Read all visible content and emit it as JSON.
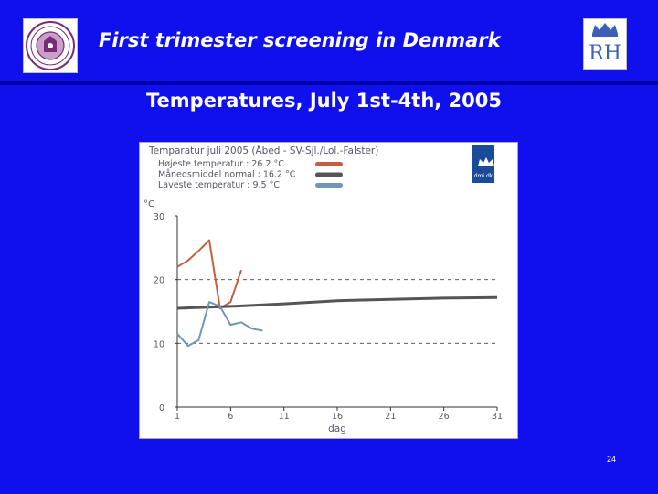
{
  "slide": {
    "title": "First trimester screening in Denmark",
    "subtitle": "Temperatures, July 1st-4th, 2005",
    "page_number": "24",
    "background_color": "#1010ee"
  },
  "logos": {
    "left": {
      "icon": "university-seal-icon"
    },
    "right": {
      "icon": "crown-rh-logo-icon",
      "lettering": "RH"
    },
    "dmi": {
      "icon": "dmi-crown-logo-icon",
      "lettering": "dmi.dk"
    }
  },
  "chart_data": {
    "type": "line",
    "title": "Temparatur juli 2005  (Åbed - SV-Sjl./Lol.-Falster)",
    "legend": [
      {
        "label": "Højeste temperatur : 26.2 °C",
        "color": "#c06040"
      },
      {
        "label": "Månedsmiddel normal : 16.2 °C",
        "color": "#555555"
      },
      {
        "label": "Laveste temperatur : 9.5 °C",
        "color": "#6f95b8"
      }
    ],
    "legend_position": "top-left",
    "ylabel": "°C",
    "xlabel": "dag",
    "xlim": [
      1,
      31
    ],
    "ylim": [
      0,
      30
    ],
    "x_ticks": [
      1,
      6,
      11,
      16,
      21,
      26,
      31
    ],
    "y_ticks": [
      0,
      10,
      20,
      30
    ],
    "grid": "dashed horizontal at 10 and 20",
    "series": [
      {
        "name": "Højeste temperatur",
        "color": "#c06040",
        "x": [
          1,
          2,
          3,
          4,
          5,
          6,
          7
        ],
        "y": [
          22.0,
          23.0,
          24.5,
          26.2,
          15.5,
          16.5,
          21.5
        ]
      },
      {
        "name": "Månedsmiddel normal",
        "color": "#555555",
        "x": [
          1,
          6,
          11,
          16,
          21,
          26,
          31
        ],
        "y": [
          15.5,
          15.8,
          16.2,
          16.7,
          16.9,
          17.1,
          17.2
        ]
      },
      {
        "name": "Laveste temperatur",
        "color": "#6f95b8",
        "x": [
          1,
          2,
          3,
          4,
          5,
          6,
          7,
          8,
          9
        ],
        "y": [
          11.5,
          9.6,
          10.5,
          16.5,
          15.8,
          12.9,
          13.3,
          12.3,
          12.0
        ]
      }
    ]
  }
}
